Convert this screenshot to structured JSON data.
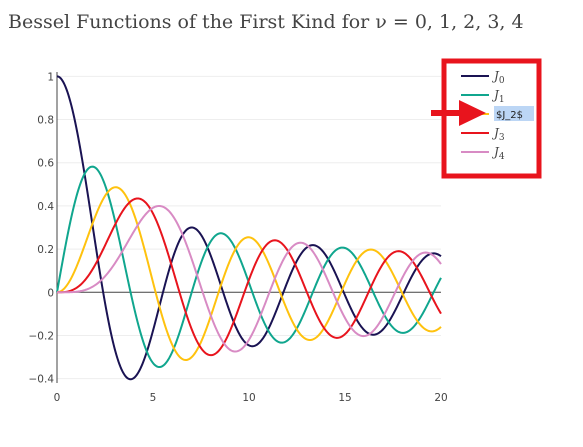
{
  "chart_data": {
    "type": "line",
    "title": "Bessel Functions of the First Kind for ν  = 0, 1, 2, 3, 4",
    "xlabel": "",
    "ylabel": "",
    "xlim": [
      0,
      20
    ],
    "ylim": [
      -0.42,
      1.02
    ],
    "x_ticks": [
      "0",
      "5",
      "10",
      "15",
      "20"
    ],
    "y_ticks": [
      "−0.4",
      "−0.2",
      "0",
      "0.2",
      "0.4",
      "0.6",
      "0.8",
      "1"
    ],
    "grid": true,
    "legend_position": "top-right",
    "series": [
      {
        "name": "J0",
        "order": 0,
        "color": "#1a1353"
      },
      {
        "name": "J1",
        "order": 1,
        "color": "#10a68e"
      },
      {
        "name": "J2",
        "order": 2,
        "color": "#ffc20e",
        "legend_label_editing": "$J_2$"
      },
      {
        "name": "J3",
        "order": 3,
        "color": "#e8141d"
      },
      {
        "name": "J4",
        "order": 4,
        "color": "#d88bc4"
      }
    ]
  },
  "annotations": {
    "highlight_box_color": "#e8141d",
    "arrow_color": "#e8141d"
  }
}
